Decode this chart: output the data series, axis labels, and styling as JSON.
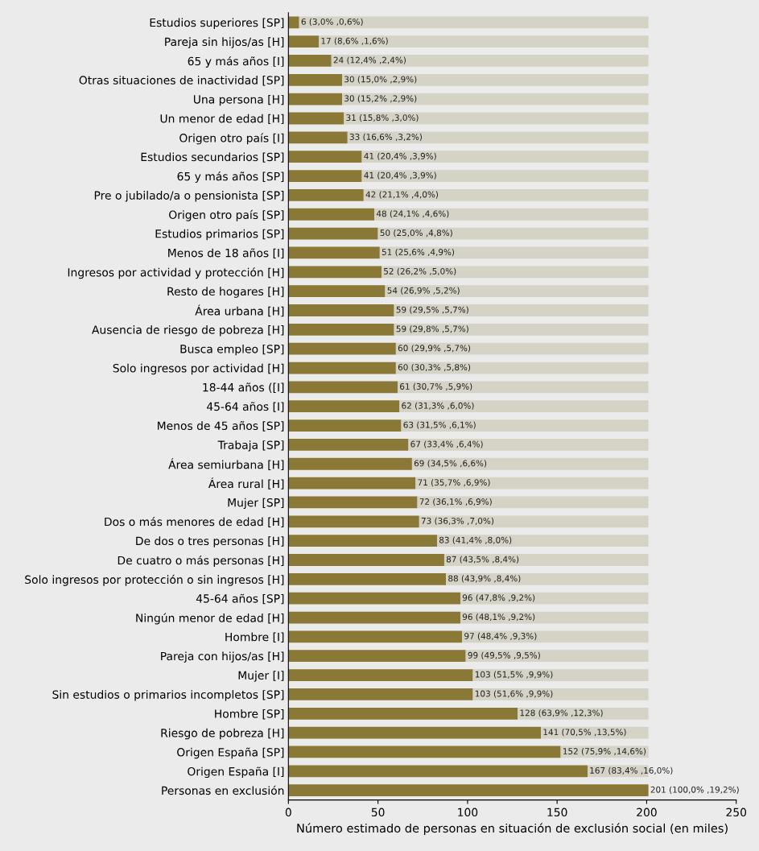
{
  "chart_data": {
    "type": "bar",
    "orientation": "horizontal",
    "stacked": true,
    "xlabel": "Número estimado de personas en situación de exclusión social (en miles)",
    "categories": [
      "Estudios superiores [SP]",
      "Pareja sin hijos/as [H]",
      "65 y más años [I]",
      "Otras situaciones de inactividad [SP]",
      "Una persona [H]",
      "Un menor de edad [H]",
      "Origen otro país [I]",
      "Estudios secundarios [SP]",
      "65 y más años [SP]",
      "Pre o jubilado/a o pensionista [SP]",
      "Origen otro país [SP]",
      "Estudios primarios [SP]",
      "Menos de 18 años [I]",
      "Ingresos por actividad y protección [H]",
      "Resto de hogares [H]",
      "Área urbana [H]",
      "Ausencia de riesgo de pobreza [H]",
      "Busca empleo [SP]",
      "Solo ingresos por actividad [H]",
      "18-44 años ([I]",
      "45-64 años [I]",
      "Menos de 45 años [SP]",
      "Trabaja [SP]",
      "Área semiurbana [H]",
      "Área rural [H]",
      "Mujer [SP]",
      "Dos o más menores de edad [H]",
      "De dos o tres personas [H]",
      "De cuatro o más personas [H]",
      "Solo ingresos por protección o sin ingresos [H]",
      "45-64 años [SP]",
      "Ningún menor de edad [H]",
      "Hombre [I]",
      "Pareja con hijos/as [H]",
      "Mujer [I]",
      "Sin estudios o primarios incompletos [SP]",
      "Hombre [SP]",
      "Riesgo de pobreza [H]",
      "Origen España [SP]",
      "Origen España [I]",
      "Personas en exclusión"
    ],
    "series": [
      {
        "color": "#8a7837",
        "values": [
          6,
          17,
          24,
          30,
          30,
          31,
          33,
          41,
          41,
          42,
          48,
          50,
          51,
          52,
          54,
          59,
          59,
          60,
          60,
          61,
          62,
          63,
          67,
          69,
          71,
          72,
          73,
          83,
          87,
          88,
          96,
          96,
          97,
          99,
          103,
          103,
          128,
          141,
          152,
          167,
          201
        ],
        "value_labels": [
          "6 (3,0% ,0,6%)",
          "17 (8,6% ,1,6%)",
          "24 (12,4% ,2,4%)",
          "30 (15,0% ,2,9%)",
          "30 (15,2% ,2,9%)",
          "31 (15,8% ,3,0%)",
          "33 (16,6% ,3,2%)",
          "41 (20,4% ,3,9%)",
          "41 (20,4% ,3,9%)",
          "42 (21,1% ,4,0%)",
          "48 (24,1% ,4,6%)",
          "50 (25,0% ,4,8%)",
          "51 (25,6% ,4,9%)",
          "52 (26,2% ,5,0%)",
          "54 (26,9% ,5,2%)",
          "59 (29,5% ,5,7%)",
          "59 (29,8% ,5,7%)",
          "60 (29,9% ,5,7%)",
          "60 (30,3% ,5,8%)",
          "61 (30,7% ,5,9%)",
          "62 (31,3% ,6,0%)",
          "63 (31,5% ,6,1%)",
          "67 (33,4% ,6,4%)",
          "69 (34,5% ,6,6%)",
          "71 (35,7% ,6,9%)",
          "72 (36,1% ,6,9%)",
          "73 (36,3% ,7,0%)",
          "83 (41,4% ,8,0%)",
          "87 (43,5% ,8,4%)",
          "88 (43,9% ,8,4%)",
          "96 (47,8% ,9,2%)",
          "96 (48,1% ,9,2%)",
          "97 (48,4% ,9,3%)",
          "99 (49,5% ,9,5%)",
          "103 (51,5% ,9,9%)",
          "103 (51,6% ,9,9%)",
          "128 (63,9% ,12,3%)",
          "141 (70,5% ,13,5%)",
          "152 (75,9% ,14,6%)",
          "167 (83,4% ,16,0%)",
          "201 (100,0% ,19,2%)"
        ]
      },
      {
        "color": "#d5d2c6",
        "values": [
          195,
          184,
          177,
          171,
          171,
          170,
          168,
          160,
          160,
          159,
          153,
          151,
          150,
          149,
          147,
          142,
          142,
          141,
          141,
          140,
          139,
          138,
          134,
          132,
          130,
          129,
          128,
          118,
          114,
          113,
          105,
          105,
          104,
          102,
          98,
          98,
          73,
          60,
          49,
          34,
          0
        ]
      }
    ],
    "xlim": [
      0,
      250
    ],
    "xticks": [
      0,
      50,
      100,
      150,
      200,
      250
    ],
    "grid": false
  }
}
